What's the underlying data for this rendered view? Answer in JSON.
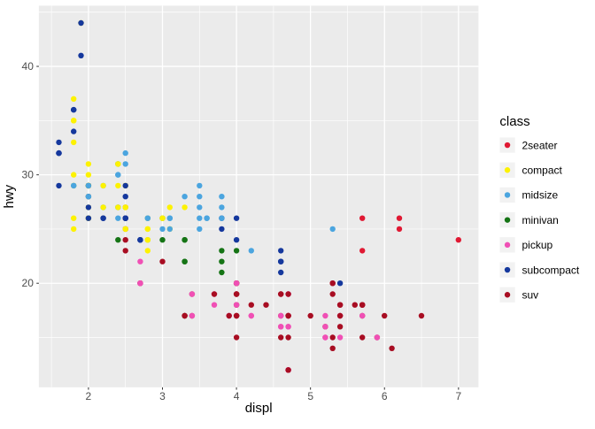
{
  "chart_data": {
    "type": "scatter",
    "title": "",
    "xlabel": "displ",
    "ylabel": "hwy",
    "xlim": [
      1.33,
      7.27
    ],
    "ylim": [
      10.4,
      45.6
    ],
    "x_ticks": [
      2,
      3,
      4,
      5,
      6,
      7
    ],
    "y_ticks": [
      20,
      30,
      40
    ],
    "x_minor_ticks": [
      1.5,
      2.5,
      3.5,
      4.5,
      5.5,
      6.5
    ],
    "y_minor_ticks": [
      15,
      25,
      35,
      45
    ],
    "grid": true,
    "legend_position": "right",
    "legend_title": "class",
    "classes": [
      {
        "name": "2seater",
        "color": "#E01933"
      },
      {
        "name": "compact",
        "color": "#FDF200"
      },
      {
        "name": "midsize",
        "color": "#4BA5DF"
      },
      {
        "name": "minivan",
        "color": "#157415"
      },
      {
        "name": "pickup",
        "color": "#F050B5"
      },
      {
        "name": "subcompact",
        "color": "#15389D"
      },
      {
        "name": "suv",
        "color": "#A80D22"
      }
    ],
    "points": [
      [
        1.8,
        29,
        "compact"
      ],
      [
        1.8,
        29,
        "compact"
      ],
      [
        2.0,
        31,
        "compact"
      ],
      [
        2.0,
        30,
        "compact"
      ],
      [
        2.8,
        26,
        "compact"
      ],
      [
        2.8,
        26,
        "compact"
      ],
      [
        3.1,
        27,
        "compact"
      ],
      [
        1.8,
        26,
        "compact"
      ],
      [
        1.8,
        25,
        "compact"
      ],
      [
        2.0,
        28,
        "compact"
      ],
      [
        2.0,
        27,
        "compact"
      ],
      [
        2.8,
        25,
        "compact"
      ],
      [
        2.8,
        25,
        "compact"
      ],
      [
        3.1,
        25,
        "compact"
      ],
      [
        3.1,
        25,
        "compact"
      ],
      [
        2.8,
        24,
        "midsize"
      ],
      [
        3.1,
        25,
        "midsize"
      ],
      [
        4.2,
        23,
        "midsize"
      ],
      [
        5.3,
        20,
        "suv"
      ],
      [
        5.3,
        15,
        "suv"
      ],
      [
        5.3,
        20,
        "suv"
      ],
      [
        5.7,
        17,
        "suv"
      ],
      [
        6.0,
        17,
        "suv"
      ],
      [
        5.7,
        26,
        "2seater"
      ],
      [
        5.7,
        23,
        "2seater"
      ],
      [
        6.2,
        26,
        "2seater"
      ],
      [
        6.2,
        25,
        "2seater"
      ],
      [
        7.0,
        24,
        "2seater"
      ],
      [
        5.3,
        19,
        "suv"
      ],
      [
        5.3,
        14,
        "suv"
      ],
      [
        5.7,
        15,
        "suv"
      ],
      [
        6.5,
        17,
        "suv"
      ],
      [
        2.4,
        27,
        "midsize"
      ],
      [
        2.4,
        30,
        "midsize"
      ],
      [
        3.1,
        26,
        "midsize"
      ],
      [
        3.5,
        29,
        "midsize"
      ],
      [
        3.6,
        26,
        "midsize"
      ],
      [
        2.4,
        24,
        "minivan"
      ],
      [
        3.0,
        24,
        "minivan"
      ],
      [
        3.3,
        22,
        "minivan"
      ],
      [
        3.3,
        22,
        "minivan"
      ],
      [
        3.3,
        24,
        "minivan"
      ],
      [
        3.3,
        24,
        "minivan"
      ],
      [
        3.3,
        17,
        "minivan"
      ],
      [
        3.8,
        22,
        "minivan"
      ],
      [
        3.8,
        21,
        "minivan"
      ],
      [
        3.8,
        23,
        "minivan"
      ],
      [
        4.0,
        23,
        "minivan"
      ],
      [
        3.7,
        19,
        "pickup"
      ],
      [
        3.7,
        18,
        "pickup"
      ],
      [
        3.9,
        17,
        "pickup"
      ],
      [
        3.9,
        17,
        "pickup"
      ],
      [
        4.7,
        19,
        "pickup"
      ],
      [
        4.7,
        19,
        "pickup"
      ],
      [
        4.7,
        12,
        "pickup"
      ],
      [
        5.2,
        17,
        "pickup"
      ],
      [
        5.2,
        15,
        "pickup"
      ],
      [
        3.9,
        17,
        "suv"
      ],
      [
        4.7,
        17,
        "suv"
      ],
      [
        4.7,
        12,
        "suv"
      ],
      [
        4.7,
        17,
        "suv"
      ],
      [
        5.2,
        16,
        "suv"
      ],
      [
        5.7,
        18,
        "suv"
      ],
      [
        5.9,
        15,
        "suv"
      ],
      [
        4.7,
        16,
        "pickup"
      ],
      [
        4.7,
        12,
        "pickup"
      ],
      [
        4.7,
        17,
        "pickup"
      ],
      [
        4.7,
        17,
        "pickup"
      ],
      [
        4.7,
        16,
        "pickup"
      ],
      [
        4.7,
        12,
        "pickup"
      ],
      [
        5.2,
        15,
        "pickup"
      ],
      [
        5.2,
        16,
        "pickup"
      ],
      [
        5.7,
        17,
        "pickup"
      ],
      [
        5.9,
        15,
        "pickup"
      ],
      [
        4.6,
        17,
        "suv"
      ],
      [
        5.4,
        17,
        "suv"
      ],
      [
        5.4,
        18,
        "suv"
      ],
      [
        4.0,
        17,
        "suv"
      ],
      [
        4.0,
        17,
        "suv"
      ],
      [
        4.0,
        19,
        "suv"
      ],
      [
        4.0,
        19,
        "suv"
      ],
      [
        4.0,
        18,
        "suv"
      ],
      [
        4.6,
        19,
        "suv"
      ],
      [
        4.2,
        17,
        "pickup"
      ],
      [
        4.2,
        17,
        "pickup"
      ],
      [
        4.6,
        16,
        "pickup"
      ],
      [
        4.6,
        16,
        "pickup"
      ],
      [
        4.6,
        17,
        "pickup"
      ],
      [
        5.4,
        15,
        "pickup"
      ],
      [
        5.4,
        17,
        "pickup"
      ],
      [
        3.8,
        26,
        "subcompact"
      ],
      [
        3.8,
        25,
        "subcompact"
      ],
      [
        4.0,
        26,
        "subcompact"
      ],
      [
        4.0,
        24,
        "subcompact"
      ],
      [
        4.6,
        21,
        "subcompact"
      ],
      [
        4.6,
        22,
        "subcompact"
      ],
      [
        4.6,
        23,
        "subcompact"
      ],
      [
        4.6,
        22,
        "subcompact"
      ],
      [
        5.4,
        20,
        "subcompact"
      ],
      [
        1.6,
        33,
        "subcompact"
      ],
      [
        1.6,
        32,
        "subcompact"
      ],
      [
        1.6,
        32,
        "subcompact"
      ],
      [
        1.6,
        29,
        "subcompact"
      ],
      [
        1.6,
        32,
        "subcompact"
      ],
      [
        1.8,
        34,
        "subcompact"
      ],
      [
        1.8,
        36,
        "subcompact"
      ],
      [
        1.8,
        36,
        "subcompact"
      ],
      [
        2.0,
        29,
        "subcompact"
      ],
      [
        2.4,
        26,
        "midsize"
      ],
      [
        2.4,
        27,
        "midsize"
      ],
      [
        2.4,
        30,
        "midsize"
      ],
      [
        2.4,
        31,
        "midsize"
      ],
      [
        2.5,
        26,
        "midsize"
      ],
      [
        2.5,
        26,
        "midsize"
      ],
      [
        3.3,
        28,
        "midsize"
      ],
      [
        2.0,
        26,
        "subcompact"
      ],
      [
        2.0,
        29,
        "subcompact"
      ],
      [
        2.0,
        28,
        "subcompact"
      ],
      [
        2.0,
        27,
        "subcompact"
      ],
      [
        2.7,
        24,
        "subcompact"
      ],
      [
        2.7,
        24,
        "subcompact"
      ],
      [
        2.7,
        24,
        "subcompact"
      ],
      [
        3.0,
        22,
        "suv"
      ],
      [
        3.7,
        19,
        "suv"
      ],
      [
        4.0,
        20,
        "suv"
      ],
      [
        4.7,
        17,
        "suv"
      ],
      [
        4.7,
        12,
        "suv"
      ],
      [
        4.7,
        19,
        "suv"
      ],
      [
        5.7,
        18,
        "suv"
      ],
      [
        6.1,
        14,
        "suv"
      ],
      [
        4.0,
        15,
        "suv"
      ],
      [
        4.2,
        18,
        "suv"
      ],
      [
        4.4,
        18,
        "suv"
      ],
      [
        4.6,
        15,
        "suv"
      ],
      [
        5.4,
        17,
        "suv"
      ],
      [
        5.4,
        16,
        "suv"
      ],
      [
        5.4,
        18,
        "suv"
      ],
      [
        4.0,
        17,
        "suv"
      ],
      [
        4.0,
        19,
        "suv"
      ],
      [
        4.6,
        19,
        "suv"
      ],
      [
        5.0,
        17,
        "suv"
      ],
      [
        2.4,
        29,
        "compact"
      ],
      [
        2.4,
        27,
        "compact"
      ],
      [
        2.5,
        31,
        "midsize"
      ],
      [
        2.5,
        32,
        "midsize"
      ],
      [
        3.5,
        27,
        "midsize"
      ],
      [
        3.5,
        26,
        "midsize"
      ],
      [
        3.0,
        26,
        "midsize"
      ],
      [
        3.0,
        25,
        "midsize"
      ],
      [
        3.5,
        25,
        "midsize"
      ],
      [
        3.3,
        17,
        "suv"
      ],
      [
        3.3,
        17,
        "suv"
      ],
      [
        4.0,
        20,
        "suv"
      ],
      [
        5.6,
        18,
        "suv"
      ],
      [
        3.1,
        26,
        "midsize"
      ],
      [
        3.8,
        26,
        "midsize"
      ],
      [
        3.8,
        27,
        "midsize"
      ],
      [
        3.8,
        28,
        "midsize"
      ],
      [
        5.3,
        25,
        "midsize"
      ],
      [
        2.5,
        25,
        "suv"
      ],
      [
        2.5,
        24,
        "suv"
      ],
      [
        2.5,
        27,
        "suv"
      ],
      [
        2.5,
        25,
        "suv"
      ],
      [
        2.5,
        26,
        "suv"
      ],
      [
        2.5,
        23,
        "suv"
      ],
      [
        2.2,
        26,
        "subcompact"
      ],
      [
        2.2,
        26,
        "subcompact"
      ],
      [
        2.5,
        26,
        "subcompact"
      ],
      [
        2.5,
        26,
        "subcompact"
      ],
      [
        2.5,
        25,
        "compact"
      ],
      [
        2.5,
        27,
        "compact"
      ],
      [
        2.5,
        25,
        "compact"
      ],
      [
        2.5,
        27,
        "compact"
      ],
      [
        2.7,
        20,
        "suv"
      ],
      [
        2.7,
        20,
        "suv"
      ],
      [
        3.4,
        19,
        "suv"
      ],
      [
        3.4,
        17,
        "suv"
      ],
      [
        4.0,
        20,
        "suv"
      ],
      [
        4.7,
        17,
        "suv"
      ],
      [
        2.2,
        29,
        "midsize"
      ],
      [
        2.2,
        27,
        "midsize"
      ],
      [
        2.4,
        31,
        "midsize"
      ],
      [
        2.4,
        31,
        "midsize"
      ],
      [
        3.0,
        26,
        "midsize"
      ],
      [
        3.0,
        26,
        "midsize"
      ],
      [
        3.5,
        28,
        "midsize"
      ],
      [
        2.2,
        27,
        "compact"
      ],
      [
        2.2,
        29,
        "compact"
      ],
      [
        2.4,
        31,
        "compact"
      ],
      [
        2.4,
        31,
        "compact"
      ],
      [
        3.0,
        26,
        "compact"
      ],
      [
        3.0,
        26,
        "compact"
      ],
      [
        3.3,
        27,
        "compact"
      ],
      [
        1.8,
        30,
        "compact"
      ],
      [
        1.8,
        33,
        "compact"
      ],
      [
        1.8,
        35,
        "compact"
      ],
      [
        1.8,
        37,
        "compact"
      ],
      [
        1.8,
        35,
        "compact"
      ],
      [
        4.7,
        15,
        "suv"
      ],
      [
        5.7,
        18,
        "suv"
      ],
      [
        2.7,
        20,
        "pickup"
      ],
      [
        2.7,
        20,
        "pickup"
      ],
      [
        2.7,
        22,
        "pickup"
      ],
      [
        3.4,
        17,
        "pickup"
      ],
      [
        3.4,
        19,
        "pickup"
      ],
      [
        4.0,
        18,
        "pickup"
      ],
      [
        4.0,
        20,
        "pickup"
      ],
      [
        2.0,
        29,
        "compact"
      ],
      [
        2.0,
        26,
        "compact"
      ],
      [
        2.0,
        29,
        "compact"
      ],
      [
        2.0,
        29,
        "compact"
      ],
      [
        2.8,
        24,
        "compact"
      ],
      [
        1.9,
        44,
        "compact"
      ],
      [
        2.0,
        29,
        "compact"
      ],
      [
        2.0,
        26,
        "compact"
      ],
      [
        2.0,
        29,
        "compact"
      ],
      [
        2.0,
        29,
        "compact"
      ],
      [
        2.5,
        29,
        "compact"
      ],
      [
        2.5,
        29,
        "compact"
      ],
      [
        2.8,
        23,
        "compact"
      ],
      [
        2.8,
        24,
        "compact"
      ],
      [
        1.9,
        44,
        "subcompact"
      ],
      [
        1.9,
        41,
        "subcompact"
      ],
      [
        2.0,
        29,
        "subcompact"
      ],
      [
        2.0,
        26,
        "subcompact"
      ],
      [
        2.5,
        28,
        "subcompact"
      ],
      [
        2.5,
        29,
        "subcompact"
      ],
      [
        1.8,
        29,
        "midsize"
      ],
      [
        1.8,
        29,
        "midsize"
      ],
      [
        2.0,
        28,
        "midsize"
      ],
      [
        2.0,
        29,
        "midsize"
      ],
      [
        2.8,
        26,
        "midsize"
      ],
      [
        2.8,
        26,
        "midsize"
      ],
      [
        3.6,
        26,
        "midsize"
      ]
    ]
  },
  "style": {
    "panel_bg": "#EBEBEB",
    "grid_color": "#FFFFFF",
    "tick_mark_color": "#333333",
    "tick_label_color": "#4D4D4D",
    "legend_key_bg": "#F2F2F2",
    "page_bg": "#FFFFFF"
  }
}
